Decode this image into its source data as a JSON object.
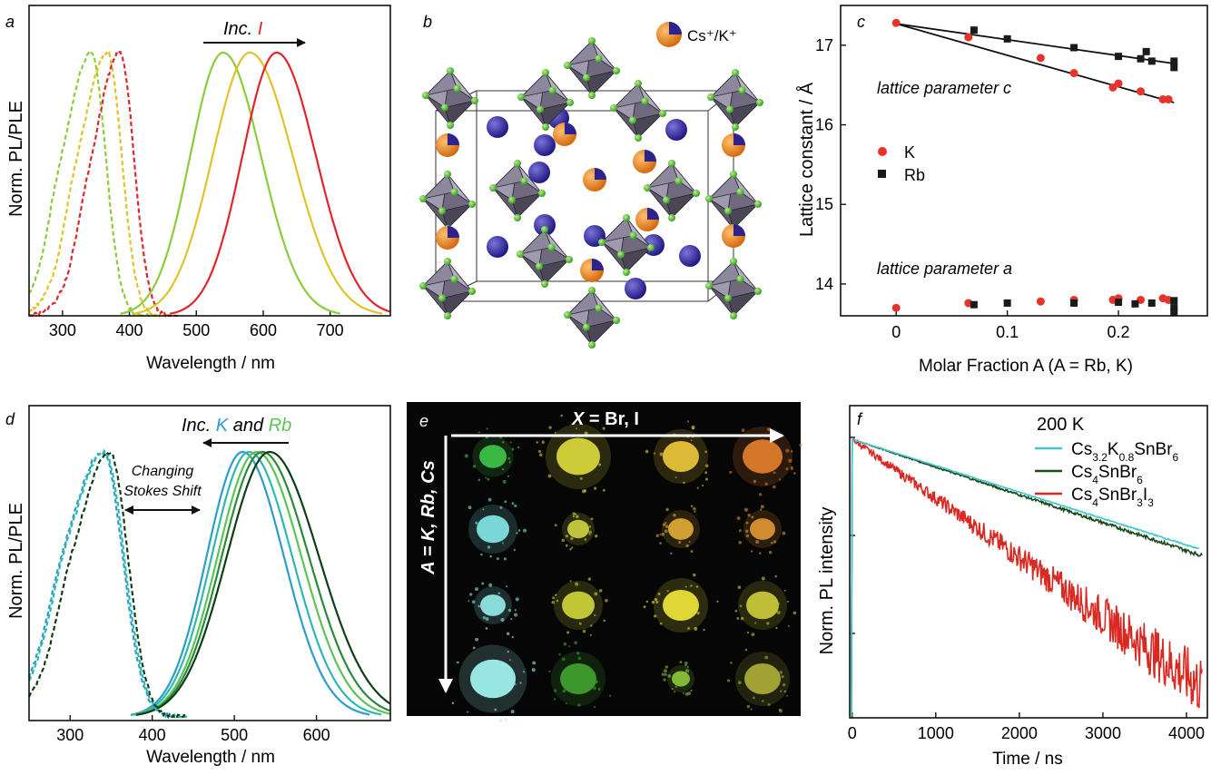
{
  "panels": {
    "a": {
      "letter": "a",
      "ylabel": "Norm. PL/PLE",
      "xlabel": "Wavelength / nm",
      "arrow_text_prefix": "Inc. ",
      "arrow_text_ion": "I",
      "xticks": [
        "300",
        "400",
        "500",
        "600",
        "700"
      ]
    },
    "b": {
      "letter": "b",
      "legend": "Cs⁺/K⁺",
      "colors": {
        "octahedron": "#8d8798",
        "halide": "#5ec43e",
        "cation": "#e8892b",
        "blue_atom": "#2c238f"
      }
    },
    "c": {
      "letter": "c",
      "ylabel": "Lattice constant / Å",
      "xlabel": "Molar Fraction A (A = Rb, K)",
      "xticks": [
        "0",
        "0.1",
        "0.2"
      ],
      "yticks": [
        "14",
        "15",
        "16",
        "17"
      ],
      "annot_c": "lattice parameter c",
      "annot_a": "lattice parameter a",
      "legend_k": "K",
      "legend_rb": "Rb"
    },
    "d": {
      "letter": "d",
      "ylabel": "Norm. PL/PLE",
      "xlabel": "Wavelength / nm",
      "arrow_prefix": "Inc. ",
      "arrow_k": "K",
      "arrow_and": " and ",
      "arrow_rb": "Rb",
      "stokes_line1": "Changing",
      "stokes_line2": "Stokes Shift",
      "xticks": [
        "300",
        "400",
        "500",
        "600"
      ]
    },
    "e": {
      "letter": "e",
      "x_label_X": "X",
      "x_label_rest": " = Br, I",
      "y_label": "A = K, Rb, Cs",
      "spot_colors": [
        [
          "#3ec048",
          "#d6d43a",
          "#e6c23a",
          "#de7a2a"
        ],
        [
          "#7fe0e0",
          "#c8cc3e",
          "#d9a934",
          "#d99231"
        ],
        [
          "#8fe4e2",
          "#c8cf39",
          "#e8e038",
          "#c8c63a"
        ],
        [
          "#9ef0ee",
          "#3f9e2e",
          "#86c23a",
          "#a8ab36"
        ]
      ]
    },
    "f": {
      "letter": "f",
      "ylabel": "Norm. PL intensity",
      "xlabel": "Time / ns",
      "temp": "200 K",
      "xticks": [
        "0",
        "1000",
        "2000",
        "3000",
        "4000"
      ],
      "legend": [
        {
          "pre": "Cs",
          "s1": "3.2",
          "m": "K",
          "s2": "0.8",
          "post": "SnBr",
          "s3": "6",
          "color": "#40c8cc"
        },
        {
          "pre": "Cs",
          "s1": "4",
          "m": "SnBr",
          "s2": "6",
          "post": "",
          "s3": "",
          "color": "#1b4a1b"
        },
        {
          "pre": "Cs",
          "s1": "4",
          "m": "SnBr",
          "s2": "3",
          "post": "I",
          "s3": "3",
          "color": "#d82a22"
        }
      ]
    }
  },
  "chart_data": [
    {
      "panel": "a",
      "type": "line",
      "xlabel": "Wavelength / nm",
      "ylabel": "Norm. PL/PLE",
      "xlim": [
        250,
        790
      ],
      "series": [
        {
          "kind": "PLE",
          "style": "dashed",
          "color": "#8ccc3a",
          "peak": 343,
          "sigma": 27
        },
        {
          "kind": "PLE",
          "style": "dashed",
          "color": "#e0c32a",
          "peak": 367,
          "sigma": 27
        },
        {
          "kind": "PLE",
          "style": "dashed",
          "color": "#e0262a",
          "peak": 386,
          "sigma": 26
        },
        {
          "kind": "PL",
          "style": "solid",
          "color": "#8ccc3a",
          "peak": 540,
          "sigma": 53
        },
        {
          "kind": "PL",
          "style": "solid",
          "color": "#e0c32a",
          "peak": 580,
          "sigma": 60
        },
        {
          "kind": "PL",
          "style": "solid",
          "color": "#e0262a",
          "peak": 620,
          "sigma": 55
        }
      ]
    },
    {
      "panel": "c",
      "type": "scatter",
      "xlabel": "Molar Fraction A (A = Rb, K)",
      "ylabel": "Lattice constant / Å",
      "xlim": [
        -0.05,
        0.28
      ],
      "ylim": [
        13.6,
        17.5
      ],
      "series": [
        {
          "name": "K",
          "param": "c",
          "color": "#e8322a",
          "marker": "circle",
          "x": [
            0,
            0.065,
            0.13,
            0.16,
            0.195,
            0.2,
            0.22,
            0.24,
            0.245
          ],
          "y": [
            17.28,
            17.1,
            16.84,
            16.65,
            16.47,
            16.52,
            16.42,
            16.32,
            16.32
          ]
        },
        {
          "name": "Rb",
          "param": "c",
          "color": "#1a1a1a",
          "marker": "square",
          "x": [
            0.07,
            0.1,
            0.16,
            0.2,
            0.22,
            0.225,
            0.23,
            0.25,
            0.25
          ],
          "y": [
            17.19,
            17.08,
            16.97,
            16.86,
            16.83,
            16.92,
            16.8,
            16.8,
            16.72
          ]
        },
        {
          "name": "K",
          "param": "a",
          "color": "#e8322a",
          "marker": "circle",
          "x": [
            0,
            0.065,
            0.13,
            0.16,
            0.195,
            0.2,
            0.22,
            0.24,
            0.245
          ],
          "y": [
            13.7,
            13.76,
            13.78,
            13.8,
            13.8,
            13.82,
            13.8,
            13.82,
            13.8
          ]
        },
        {
          "name": "Rb",
          "param": "a",
          "color": "#1a1a1a",
          "marker": "square",
          "x": [
            0.07,
            0.1,
            0.16,
            0.2,
            0.215,
            0.23,
            0.25,
            0.25,
            0.25
          ],
          "y": [
            13.74,
            13.76,
            13.76,
            13.77,
            13.75,
            13.76,
            13.79,
            13.7,
            13.65
          ]
        }
      ],
      "fits": [
        {
          "x": [
            0,
            0.25
          ],
          "y": [
            17.27,
            16.28
          ]
        },
        {
          "x": [
            0,
            0.25
          ],
          "y": [
            17.27,
            16.77
          ]
        }
      ]
    },
    {
      "panel": "d",
      "type": "line",
      "xlabel": "Wavelength / nm",
      "ylabel": "Norm. PL/PLE",
      "xlim": [
        250,
        690
      ],
      "series": [
        {
          "kind": "PL",
          "style": "solid",
          "color": "#2c9ccc",
          "peak": 510,
          "sigma": 47
        },
        {
          "kind": "PL",
          "style": "solid",
          "color": "#2eb8b0",
          "peak": 518,
          "sigma": 49
        },
        {
          "kind": "PL",
          "style": "solid",
          "color": "#5cc455",
          "peak": 527,
          "sigma": 51
        },
        {
          "kind": "PL",
          "style": "solid",
          "color": "#2a8a3a",
          "peak": 534,
          "sigma": 53
        },
        {
          "kind": "PL",
          "style": "solid",
          "color": "#0f3e16",
          "peak": 543,
          "sigma": 56
        },
        {
          "kind": "PLE",
          "style": "dashed",
          "color": "#2c9ccc",
          "peak": 340,
          "sigma": 30
        },
        {
          "kind": "PLE",
          "style": "dashed",
          "color": "#2eb8b0",
          "peak": 342,
          "sigma": 30
        },
        {
          "kind": "PLE",
          "style": "dashed",
          "color": "#0f3e16",
          "peak": 348,
          "sigma": 28
        }
      ]
    },
    {
      "panel": "f",
      "type": "line",
      "xlabel": "Time / ns",
      "ylabel": "Norm. PL intensity",
      "xlim": [
        -30,
        4250
      ],
      "yscale": "log",
      "series": [
        {
          "name": "Cs3.2K0.8SnBr6",
          "color": "#40c8cc",
          "tau": 1610,
          "noise": 0.01
        },
        {
          "name": "Cs4SnBr6",
          "color": "#1b4a1b",
          "tau": 1530,
          "noise": 0.03
        },
        {
          "name": "Cs4SnBr3I3",
          "color": "#d82a22",
          "tau": 720,
          "noise": 0.18
        }
      ]
    }
  ]
}
